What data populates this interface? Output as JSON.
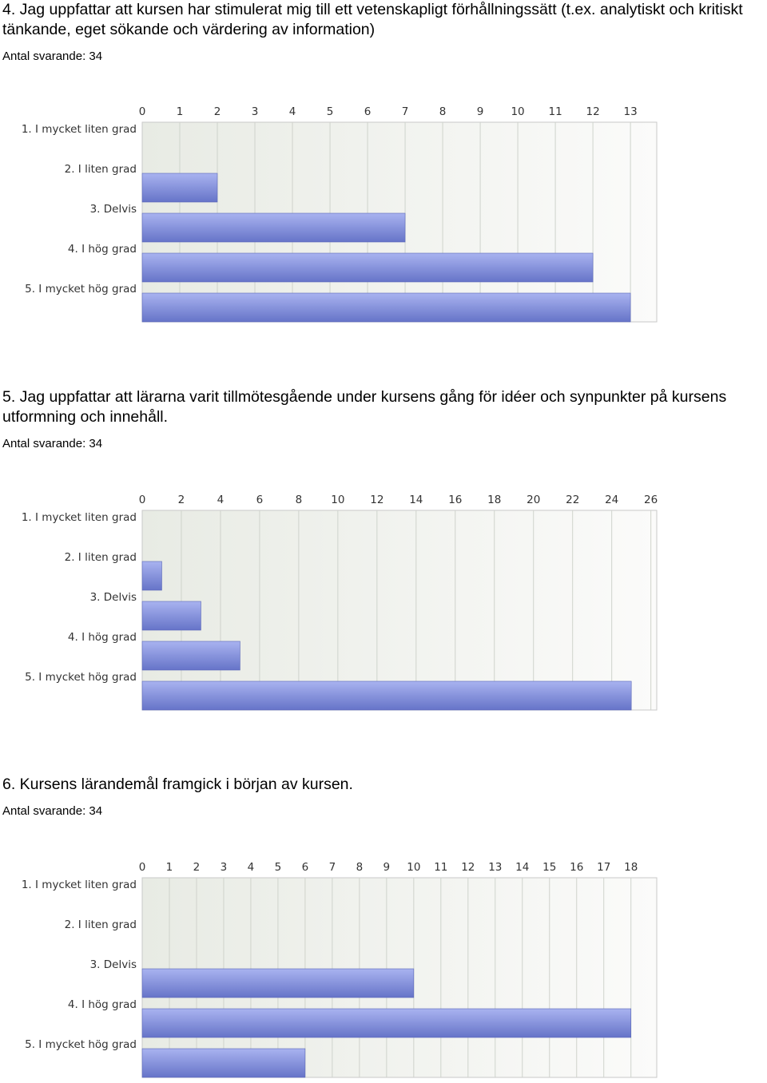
{
  "questions": [
    {
      "title": "4. Jag uppfattar att kursen har stimulerat mig till ett vetenskapligt förhållningssätt (t.ex. analytiskt och kritiskt tänkande, eget sökande och värdering av information)",
      "count_label": "Antal svarande: 34"
    },
    {
      "title": "5. Jag uppfattar att lärarna varit tillmötesgående under kursens gång för idéer och synpunkter på kursens utformning och innehåll.",
      "count_label": "Antal svarande: 34"
    },
    {
      "title": "6. Kursens lärandemål framgick i början av kursen.",
      "count_label": "Antal svarande: 34"
    }
  ],
  "colors": {
    "bar_top": "#a9b3f0",
    "bar_bottom": "#6674c8",
    "bar_stroke": "#5a67b8",
    "plot_bg_left": "#e8ebe4",
    "plot_bg_right": "#fbfbfa",
    "grid": "#cfd3cc",
    "frame": "#c8c8c8"
  },
  "chart_data": [
    {
      "type": "bar",
      "orientation": "horizontal",
      "categories": [
        "1. I mycket liten grad",
        "2. I liten grad",
        "3. Delvis",
        "4. I hög grad",
        "5. I mycket hög grad"
      ],
      "values": [
        0,
        2,
        7,
        12,
        13
      ],
      "xlim": [
        0,
        13.7
      ],
      "xticks": [
        "0",
        "1",
        "2",
        "3",
        "4",
        "5",
        "6",
        "7",
        "8",
        "9",
        "10",
        "11",
        "12",
        "13"
      ],
      "tick_step": 1,
      "axis_position": "top",
      "grid": true
    },
    {
      "type": "bar",
      "orientation": "horizontal",
      "categories": [
        "1. I mycket liten grad",
        "2. I liten grad",
        "3. Delvis",
        "4. I hög grad",
        "5. I mycket hög grad"
      ],
      "values": [
        0,
        1,
        3,
        5,
        25
      ],
      "xlim": [
        0,
        26.3
      ],
      "xticks": [
        "0",
        "2",
        "4",
        "6",
        "8",
        "10",
        "12",
        "14",
        "16",
        "18",
        "20",
        "22",
        "24",
        "26"
      ],
      "tick_step": 2,
      "axis_position": "top",
      "grid": true
    },
    {
      "type": "bar",
      "orientation": "horizontal",
      "categories": [
        "1. I mycket liten grad",
        "2. I liten grad",
        "3. Delvis",
        "4. I hög grad",
        "5. I mycket hög grad"
      ],
      "values": [
        0,
        0,
        10,
        18,
        6
      ],
      "xlim": [
        0,
        18.95
      ],
      "xticks": [
        "0",
        "1",
        "2",
        "3",
        "4",
        "5",
        "6",
        "7",
        "8",
        "9",
        "10",
        "11",
        "12",
        "13",
        "14",
        "15",
        "16",
        "17",
        "18"
      ],
      "tick_step": 1,
      "axis_position": "top",
      "grid": true
    }
  ]
}
